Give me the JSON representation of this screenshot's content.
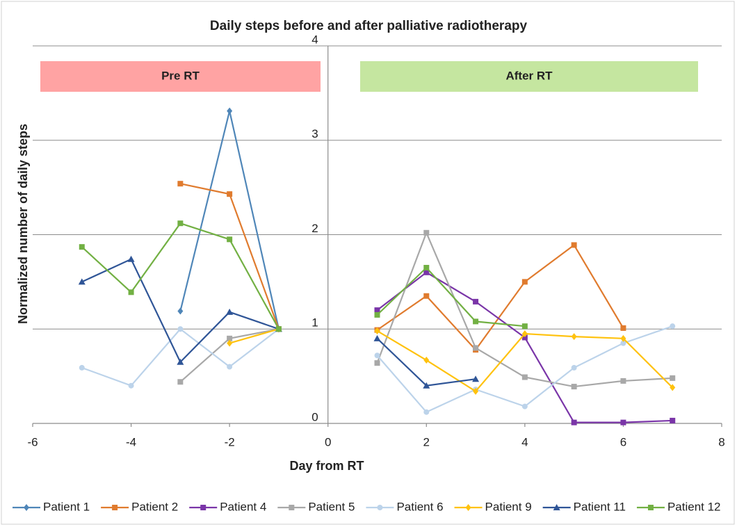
{
  "chart_data": {
    "type": "line",
    "title": "Daily steps before and after palliative radiotherapy",
    "xlabel": "Day from RT",
    "ylabel": "Normalized  number of daily steps",
    "annotations": [
      {
        "text": "Pre RT",
        "color": "#ffa3a3"
      },
      {
        "text": "After RT",
        "color": "#c5e6a0"
      }
    ],
    "x": [
      -5,
      -4,
      -3,
      -2,
      -1,
      0,
      1,
      2,
      3,
      4,
      5,
      6,
      7
    ],
    "xlim": [
      -6,
      8
    ],
    "xticks": [
      -6,
      -4,
      -2,
      0,
      2,
      4,
      6,
      8
    ],
    "ylim": [
      0,
      4
    ],
    "yticks": [
      0,
      1,
      2,
      3,
      4
    ],
    "grid": true,
    "legend": "bottom",
    "series": [
      {
        "name": "Patient 1",
        "color": "#4f86b8",
        "marker": "diamond",
        "values": [
          null,
          null,
          1.19,
          3.31,
          1.0,
          null,
          null,
          null,
          null,
          null,
          null,
          null,
          null
        ]
      },
      {
        "name": "Patient 2",
        "color": "#e07b2e",
        "marker": "square",
        "values": [
          null,
          null,
          2.54,
          2.43,
          1.0,
          null,
          0.99,
          1.35,
          0.78,
          1.5,
          1.89,
          1.01,
          null
        ]
      },
      {
        "name": "Patient 4",
        "color": "#7a35a8",
        "marker": "square",
        "values": [
          null,
          null,
          null,
          null,
          null,
          null,
          1.2,
          1.6,
          1.29,
          0.91,
          0.01,
          0.01,
          0.03
        ]
      },
      {
        "name": "Patient 5",
        "color": "#a8a8a8",
        "marker": "square",
        "values": [
          null,
          null,
          0.44,
          0.9,
          1.0,
          null,
          0.64,
          2.02,
          0.8,
          0.49,
          0.39,
          0.45,
          0.48
        ]
      },
      {
        "name": "Patient 6",
        "color": "#bcd3ea",
        "marker": "circle",
        "values": [
          0.59,
          0.4,
          1.0,
          0.6,
          1.0,
          null,
          0.72,
          0.12,
          0.36,
          0.18,
          0.59,
          0.85,
          1.03
        ]
      },
      {
        "name": "Patient 9",
        "color": "#ffc20e",
        "marker": "diamond",
        "values": [
          null,
          null,
          null,
          0.85,
          1.0,
          null,
          0.98,
          0.67,
          0.34,
          0.95,
          0.92,
          0.9,
          0.38
        ]
      },
      {
        "name": "Patient 11",
        "color": "#2f5597",
        "marker": "triangle",
        "values": [
          1.5,
          1.74,
          0.65,
          1.18,
          1.0,
          null,
          0.9,
          0.4,
          0.47,
          null,
          null,
          null,
          null
        ]
      },
      {
        "name": "Patient 12",
        "color": "#72b043",
        "marker": "square",
        "values": [
          1.87,
          1.39,
          2.12,
          1.95,
          1.0,
          null,
          1.15,
          1.65,
          1.08,
          1.03,
          null,
          null,
          null
        ]
      }
    ]
  }
}
